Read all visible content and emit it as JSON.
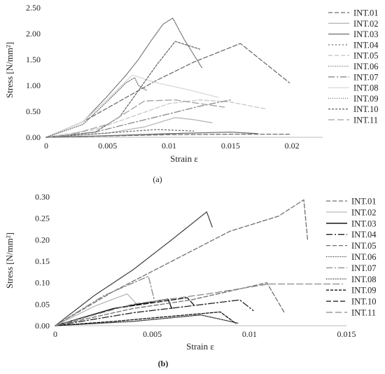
{
  "chart_data": [
    {
      "panel_label": "(a)",
      "type": "line",
      "xlabel": "Strain ε",
      "ylabel": "Stress [N/mm²]",
      "xlim": [
        0,
        0.0225
      ],
      "ylim": [
        0,
        2.5
      ],
      "xticks": [
        0,
        0.005,
        0.01,
        0.015,
        0.02
      ],
      "xtick_labels": [
        "0",
        "0.005",
        "0.01",
        "0.015",
        "0.02"
      ],
      "yticks": [
        0,
        0.5,
        1.0,
        1.5,
        2.0,
        2.5
      ],
      "ytick_labels": [
        "0.00",
        "0.50",
        "1.00",
        "1.50",
        "2.00",
        "2.50"
      ],
      "grid": false,
      "legend_position": "right",
      "series": [
        {
          "name": "INT.01",
          "color": "#6e6e6e",
          "dash": "6,3",
          "points": [
            [
              0,
              0
            ],
            [
              0.003,
              0.3
            ],
            [
              0.006,
              0.7
            ],
            [
              0.009,
              1.1
            ],
            [
              0.012,
              1.45
            ],
            [
              0.0158,
              1.81
            ],
            [
              0.0198,
              1.05
            ]
          ]
        },
        {
          "name": "INT.02",
          "color": "#b8b8b8",
          "dash": "",
          "points": [
            [
              0,
              0
            ],
            [
              0.005,
              0.08
            ],
            [
              0.008,
              0.2
            ],
            [
              0.0105,
              0.38
            ],
            [
              0.012,
              0.34
            ],
            [
              0.0135,
              0.28
            ]
          ]
        },
        {
          "name": "INT.03",
          "color": "#6e6e6e",
          "dash": "",
          "points": [
            [
              0,
              0
            ],
            [
              0.005,
              0.03
            ],
            [
              0.01,
              0.07
            ],
            [
              0.015,
              0.1
            ],
            [
              0.0172,
              0.07
            ]
          ]
        },
        {
          "name": "INT.04",
          "color": "#6e6e6e",
          "dash": "2,3",
          "points": [
            [
              0,
              0
            ],
            [
              0.003,
              0.05
            ],
            [
              0.006,
              0.1
            ],
            [
              0.009,
              0.15
            ],
            [
              0.012,
              0.12
            ]
          ]
        },
        {
          "name": "INT.05",
          "color": "#c8c8c8",
          "dash": "6,3",
          "points": [
            [
              0,
              0
            ],
            [
              0.004,
              0.15
            ],
            [
              0.007,
              0.4
            ],
            [
              0.01,
              0.65
            ],
            [
              0.0125,
              0.72
            ],
            [
              0.015,
              0.68
            ],
            [
              0.0178,
              0.55
            ]
          ]
        },
        {
          "name": "INT.06",
          "color": "#6e6e6e",
          "dash": "1,1.5",
          "points": [
            [
              0,
              0
            ],
            [
              0.003,
              0.3
            ],
            [
              0.005,
              0.8
            ],
            [
              0.0065,
              1.2
            ],
            [
              0.0075,
              1.5
            ],
            [
              0.0085,
              1.85
            ],
            [
              0.0095,
              2.18
            ],
            [
              0.0103,
              2.3
            ],
            [
              0.0112,
              1.9
            ],
            [
              0.0127,
              1.33
            ]
          ]
        },
        {
          "name": "INT.07",
          "color": "#888888",
          "dash": "9,3,2,3",
          "points": [
            [
              0,
              0
            ],
            [
              0.004,
              0.1
            ],
            [
              0.007,
              0.28
            ],
            [
              0.0098,
              0.44
            ],
            [
              0.0125,
              0.6
            ],
            [
              0.015,
              0.72
            ]
          ]
        },
        {
          "name": "INT.08",
          "color": "#d8d8d8",
          "dash": "",
          "points": [
            [
              0,
              0
            ],
            [
              0.003,
              0.3
            ],
            [
              0.0055,
              0.85
            ],
            [
              0.007,
              1.2
            ],
            [
              0.009,
              1.05
            ],
            [
              0.0115,
              0.92
            ],
            [
              0.014,
              0.77
            ]
          ]
        },
        {
          "name": "INT.09",
          "color": "#6e6e6e",
          "dash": "1,2",
          "points": [
            [
              0,
              0
            ],
            [
              0.003,
              0.25
            ],
            [
              0.005,
              0.7
            ],
            [
              0.0065,
              1.05
            ],
            [
              0.0072,
              1.15
            ],
            [
              0.0075,
              1.0
            ],
            [
              0.0082,
              0.9
            ]
          ]
        },
        {
          "name": "INT.10",
          "color": "#6e6e6e",
          "dash": "3,2",
          "points": [
            [
              0,
              0
            ],
            [
              0.004,
              0.1
            ],
            [
              0.006,
              0.4
            ],
            [
              0.0075,
              0.9
            ],
            [
              0.009,
              1.4
            ],
            [
              0.0105,
              1.85
            ],
            [
              0.0125,
              1.7
            ]
          ]
        },
        {
          "name": "INT.11",
          "color": "#a0a0a0",
          "dash": "9,4",
          "points": [
            [
              0,
              0
            ],
            [
              0.002,
              0.05
            ],
            [
              0.005,
              0.25
            ],
            [
              0.008,
              0.7
            ],
            [
              0.0105,
              0.72
            ],
            [
              0.0145,
              0.58
            ]
          ]
        },
        {
          "name": "",
          "color": "#6e6e6e",
          "dash": "6,3",
          "points": [
            [
              0,
              0
            ],
            [
              0.01,
              0.05
            ],
            [
              0.0155,
              0.06
            ],
            [
              0.0198,
              0.06
            ]
          ]
        }
      ]
    },
    {
      "panel_label": "(b)",
      "type": "line",
      "xlabel": "Strain ε",
      "ylabel": "Stress [N/mm²]",
      "xlim": [
        0,
        0.015
      ],
      "ylim": [
        0,
        0.3
      ],
      "xticks": [
        0,
        0.005,
        0.01,
        0.015
      ],
      "xtick_labels": [
        "0",
        "0.005",
        "0.01",
        "0.015"
      ],
      "yticks": [
        0,
        0.05,
        0.1,
        0.15,
        0.2,
        0.25,
        0.3
      ],
      "ytick_labels": [
        "0.00",
        "0.05",
        "0.10",
        "0.15",
        "0.20",
        "0.25",
        "0.30"
      ],
      "grid": false,
      "legend_position": "right",
      "series": [
        {
          "name": "INT.01",
          "color": "#6e6e6e",
          "dash": "6,3",
          "points": [
            [
              0,
              0
            ],
            [
              0.003,
              0.08
            ],
            [
              0.006,
              0.15
            ],
            [
              0.009,
              0.22
            ],
            [
              0.0115,
              0.255
            ],
            [
              0.0128,
              0.293
            ],
            [
              0.013,
              0.2
            ]
          ]
        },
        {
          "name": "INT.02",
          "color": "#b8b8b8",
          "dash": "",
          "points": [
            [
              0,
              0
            ],
            [
              0.002,
              0.045
            ],
            [
              0.0037,
              0.074
            ],
            [
              0.0042,
              0.05
            ]
          ]
        },
        {
          "name": "INT.03",
          "color": "#000000",
          "dash": "",
          "points": [
            [
              0,
              0
            ],
            [
              0.003,
              0.04
            ],
            [
              0.0058,
              0.062
            ],
            [
              0.006,
              0.04
            ]
          ]
        },
        {
          "name": "INT.04",
          "color": "#222222",
          "dash": "9,3,2,3",
          "points": [
            [
              0,
              0
            ],
            [
              0.004,
              0.03
            ],
            [
              0.0068,
              0.045
            ],
            [
              0.0095,
              0.06
            ],
            [
              0.0102,
              0.035
            ]
          ]
        },
        {
          "name": "INT.05",
          "color": "#6e6e6e",
          "dash": "6,3",
          "points": [
            [
              0,
              0
            ],
            [
              0.004,
              0.04
            ],
            [
              0.007,
              0.06
            ],
            [
              0.0109,
              0.1
            ],
            [
              0.0118,
              0.03
            ]
          ]
        },
        {
          "name": "INT.06",
          "color": "#222222",
          "dash": "1,1.5",
          "points": [
            [
              0,
              0
            ],
            [
              0.002,
              0.07
            ],
            [
              0.004,
              0.13
            ],
            [
              0.006,
              0.2
            ],
            [
              0.0078,
              0.265
            ],
            [
              0.0081,
              0.228
            ]
          ]
        },
        {
          "name": "INT.07",
          "color": "#888888",
          "dash": "9,3,2,3",
          "points": [
            [
              0,
              0
            ],
            [
              0.0025,
              0.07
            ],
            [
              0.0048,
              0.115
            ],
            [
              0.0051,
              0.06
            ]
          ]
        },
        {
          "name": "INT.08",
          "color": "#222222",
          "dash": "1,1.5",
          "points": [
            [
              0,
              0
            ],
            [
              0.004,
              0.01
            ],
            [
              0.0075,
              0.025
            ],
            [
              0.0094,
              0.006
            ]
          ]
        },
        {
          "name": "INT.09",
          "color": "#111111",
          "dash": "4,2",
          "points": [
            [
              0,
              0
            ],
            [
              0.003,
              0.01
            ],
            [
              0.0085,
              0.032
            ],
            [
              0.0093,
              0.005
            ]
          ]
        },
        {
          "name": "INT.10",
          "color": "#111111",
          "dash": "7,3",
          "points": [
            [
              0,
              0
            ],
            [
              0.003,
              0.04
            ],
            [
              0.0068,
              0.065
            ],
            [
              0.0072,
              0.045
            ]
          ]
        },
        {
          "name": "INT.11",
          "color": "#888888",
          "dash": "9,4",
          "points": [
            [
              0,
              0
            ],
            [
              0.004,
              0.05
            ],
            [
              0.008,
              0.075
            ],
            [
              0.011,
              0.097
            ],
            [
              0.0148,
              0.097
            ]
          ]
        }
      ]
    }
  ]
}
